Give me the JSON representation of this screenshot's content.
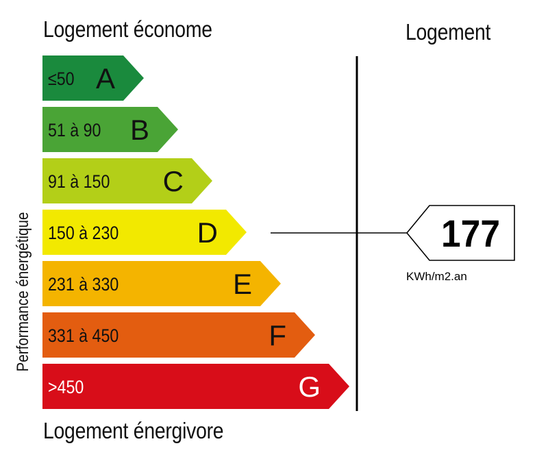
{
  "chart_data": {
    "type": "bar",
    "top_label": "Logement économe",
    "bottom_label": "Logement énergivore",
    "side_label": "Performance énergétique",
    "column_label": "Logement",
    "classes": [
      {
        "range": "≤50",
        "letter": "A",
        "color": "#1a8a3d",
        "text_color": "#111111"
      },
      {
        "range": "51 à 90",
        "letter": "B",
        "color": "#4aa436",
        "text_color": "#111111"
      },
      {
        "range": "91 à 150",
        "letter": "C",
        "color": "#b3cf18",
        "text_color": "#111111"
      },
      {
        "range": "150 à 230",
        "letter": "D",
        "color": "#f2e900",
        "text_color": "#111111"
      },
      {
        "range": "231 à 330",
        "letter": "E",
        "color": "#f4b400",
        "text_color": "#111111"
      },
      {
        "range": "331 à 450",
        "letter": "F",
        "color": "#e35d10",
        "text_color": "#111111"
      },
      {
        "range": ">450",
        "letter": "G",
        "color": "#d80d19",
        "text_color": "#ffffff"
      }
    ],
    "value": {
      "number": "177",
      "unit": "KWh/m2.an",
      "class": "D"
    }
  }
}
